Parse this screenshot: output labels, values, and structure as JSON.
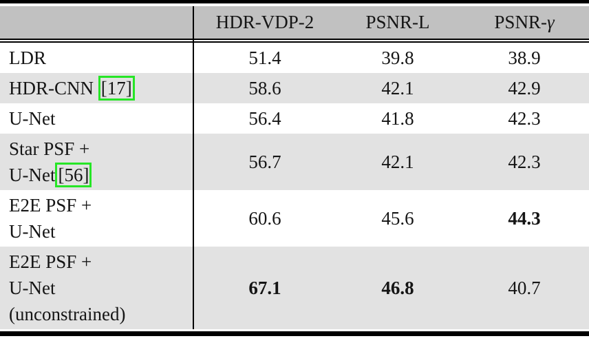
{
  "table": {
    "header": {
      "col1": "",
      "col2": "HDR-VDP-2",
      "col3": "PSNR-L",
      "col4_prefix": "PSNR-",
      "col4_gamma": "γ"
    },
    "rows": [
      {
        "label": "LDR",
        "values": [
          "51.4",
          "39.8",
          "38.9"
        ],
        "bold": []
      },
      {
        "label": "HDR-CNN ",
        "citation": "[17]",
        "values": [
          "58.6",
          "42.1",
          "42.9"
        ],
        "bold": []
      },
      {
        "label": "U-Net",
        "values": [
          "56.4",
          "41.8",
          "42.3"
        ],
        "bold": []
      },
      {
        "line1": "Star PSF +",
        "line2": "U-Net",
        "citation": "[56]",
        "values": [
          "56.7",
          "42.1",
          "42.3"
        ],
        "bold": []
      },
      {
        "line1": "E2E PSF +",
        "line2": "U-Net",
        "values": [
          "60.6",
          "45.6",
          "44.3"
        ],
        "bold": [
          2
        ]
      },
      {
        "line1": "E2E PSF +",
        "line2": "U-Net",
        "line3": "(unconstrained)",
        "values": [
          "67.1",
          "46.8",
          "40.7"
        ],
        "bold": [
          0,
          1
        ]
      }
    ],
    "colors": {
      "header_bg": "#c1c1c1",
      "stripe_bg": "#e2e2e2",
      "citation_border": "#26e626",
      "rule_color": "#000000"
    }
  }
}
